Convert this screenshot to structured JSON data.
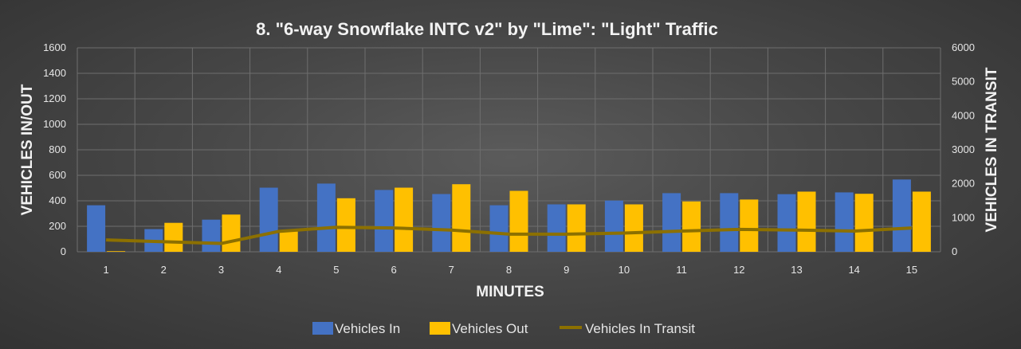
{
  "chart_data": {
    "type": "bar",
    "title": "8. \"6-way Snowflake INTC v2\" by \"Lime\": \"Light\" Traffic",
    "xlabel": "MINUTES",
    "ylabel": "VEHICLES IN/OUT",
    "y2label": "VEHICLES IN TRANSIT",
    "categories": [
      "1",
      "2",
      "3",
      "4",
      "5",
      "6",
      "7",
      "8",
      "9",
      "10",
      "11",
      "12",
      "13",
      "14",
      "15"
    ],
    "ylim": [
      0,
      1600
    ],
    "yticks": [
      0,
      200,
      400,
      600,
      800,
      1000,
      1200,
      1400,
      1600
    ],
    "y2lim": [
      0,
      6000
    ],
    "y2ticks": [
      0,
      1000,
      2000,
      3000,
      4000,
      5000,
      6000
    ],
    "grid": true,
    "legend_position": "bottom",
    "series": [
      {
        "name": "Vehicles In",
        "type": "bar",
        "axis": "left",
        "color": "#4472c4",
        "values": [
          365,
          178,
          252,
          503,
          535,
          485,
          453,
          365,
          372,
          402,
          460,
          460,
          452,
          466,
          567
        ]
      },
      {
        "name": "Vehicles Out",
        "type": "bar",
        "axis": "left",
        "color": "#ffc000",
        "values": [
          5,
          227,
          292,
          160,
          420,
          503,
          530,
          478,
          372,
          372,
          395,
          410,
          472,
          455,
          472
        ]
      },
      {
        "name": "Vehicles In Transit",
        "type": "line",
        "axis": "right",
        "color": "#8c7000",
        "values": [
          350,
          295,
          245,
          600,
          720,
          700,
          640,
          520,
          520,
          550,
          610,
          660,
          640,
          610,
          700
        ]
      }
    ]
  }
}
